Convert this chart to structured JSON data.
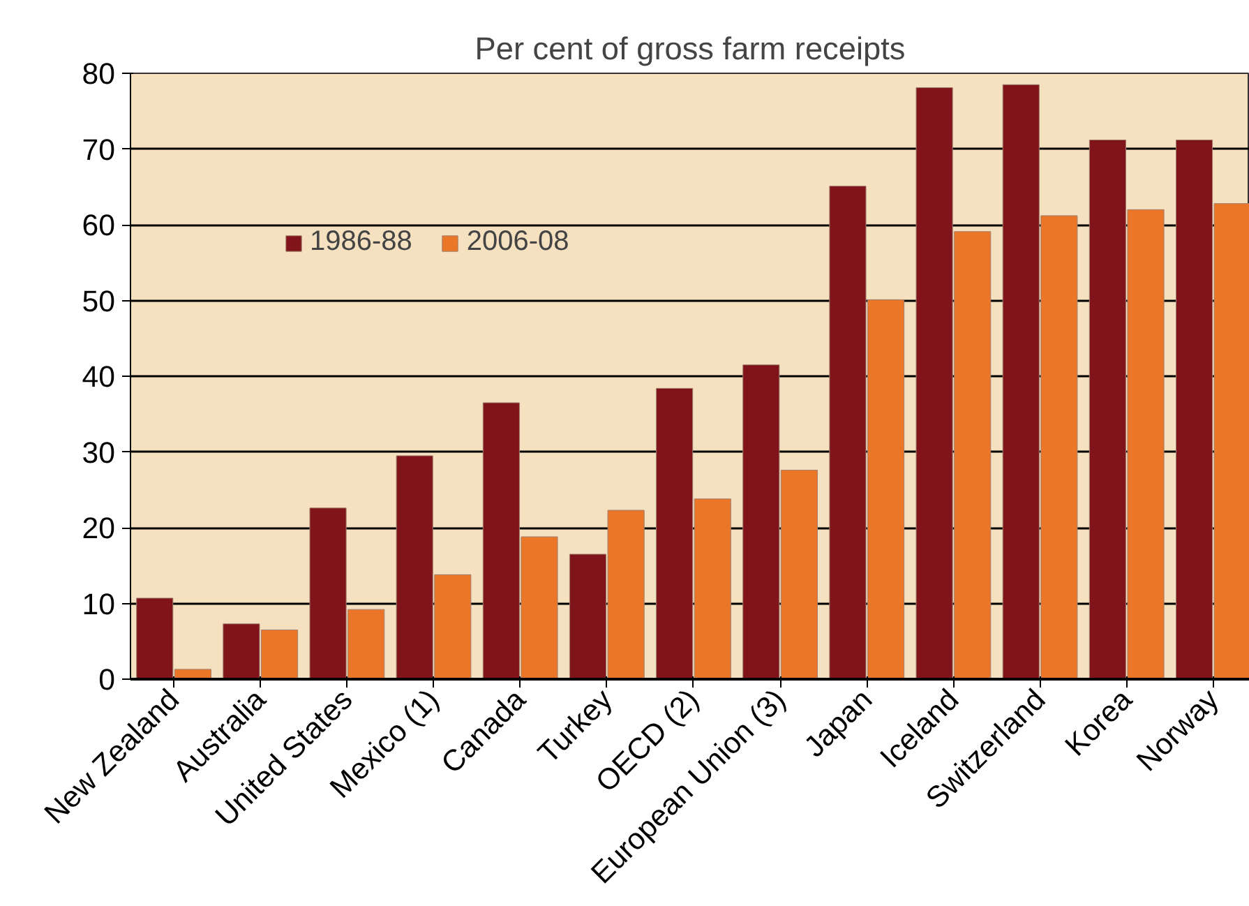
{
  "chart_data": {
    "type": "bar",
    "title": "Per cent of gross farm receipts",
    "categories": [
      "New Zealand",
      "Australia",
      "United States",
      "Mexico (1)",
      "Canada",
      "Turkey",
      "OECD (2)",
      "European Union (3)",
      "Japan",
      "Iceland",
      "Switzerland",
      "Korea",
      "Norway"
    ],
    "series": [
      {
        "name": "1986-88",
        "color": "#80141a",
        "values": [
          10.7,
          7.3,
          22.6,
          29.5,
          36.5,
          16.5,
          38.4,
          41.5,
          65.1,
          78.1,
          78.5,
          71.2,
          71.2
        ]
      },
      {
        "name": "2006-08",
        "color": "#eb7628",
        "values": [
          1.3,
          6.5,
          9.2,
          13.8,
          18.8,
          22.3,
          23.8,
          27.6,
          50.1,
          59.1,
          61.2,
          62.0,
          62.8
        ]
      }
    ],
    "ylim": [
      0,
      80
    ],
    "yticks": [
      0,
      10,
      20,
      30,
      40,
      50,
      60,
      70,
      80
    ],
    "grid": "y",
    "legend": "top left"
  }
}
